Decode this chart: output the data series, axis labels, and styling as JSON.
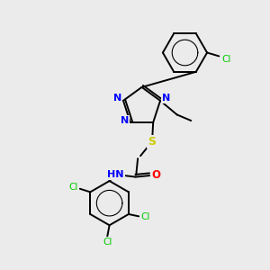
{
  "background_color": "#ebebeb",
  "bond_color": "#000000",
  "nitrogen_color": "#0000ff",
  "oxygen_color": "#ff0000",
  "sulfur_color": "#cccc00",
  "chlorine_color": "#00cc00",
  "figsize": [
    3.0,
    3.0
  ],
  "dpi": 100,
  "xlim": [
    0,
    10
  ],
  "ylim": [
    0,
    10
  ]
}
